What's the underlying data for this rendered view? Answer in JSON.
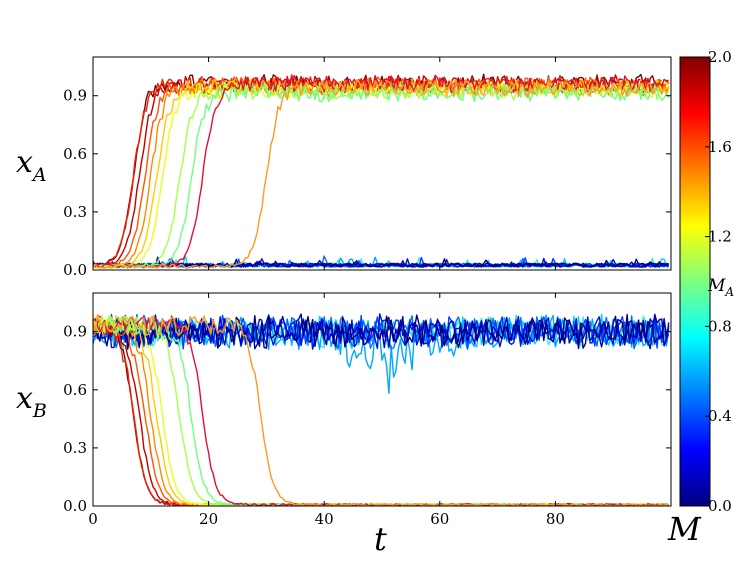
{
  "chart_data": [
    {
      "type": "line",
      "panel": "top",
      "ylabel": "x",
      "ylabel_sub": "A",
      "xlim": [
        0,
        100
      ],
      "ylim": [
        0,
        1.1
      ],
      "yticks": [
        "0.0",
        "0.3",
        "0.6",
        "0.9"
      ],
      "grid": false,
      "series": [
        {
          "M": 2.0,
          "rise_t": 7,
          "end": "high",
          "color": "#7f0000"
        },
        {
          "M": 1.9,
          "rise_t": 8,
          "end": "high",
          "color": "#c00000"
        },
        {
          "M": 1.8,
          "rise_t": 7,
          "end": "high",
          "color": "#ee2200"
        },
        {
          "M": 1.7,
          "rise_t": 9,
          "end": "high",
          "color": "#ff5500"
        },
        {
          "M": 1.6,
          "rise_t": 10,
          "end": "high",
          "color": "#ff8800"
        },
        {
          "M": 1.45,
          "rise_t": 11,
          "end": "high",
          "color": "#ffcc00"
        },
        {
          "M": 1.3,
          "rise_t": 12,
          "end": "high",
          "color": "#e8ff20"
        },
        {
          "M": 1.15,
          "rise_t": 15,
          "end": "high",
          "color": "#a8ff50"
        },
        {
          "M": 1.05,
          "rise_t": 17,
          "end": "high",
          "color": "#70ff80"
        },
        {
          "M": 1.9,
          "rise_t": 19,
          "end": "high",
          "color": "#dd1133"
        },
        {
          "M": 1.5,
          "rise_t": 30,
          "end": "high",
          "color": "#ff9922"
        },
        {
          "M": 0.9,
          "rise_t": null,
          "end": "low",
          "color": "#30f0e0"
        },
        {
          "M": 0.8,
          "rise_t": null,
          "end": "low",
          "color": "#10d0f0"
        },
        {
          "M": 0.7,
          "rise_t": null,
          "end": "low",
          "color": "#00a8ff"
        },
        {
          "M": 0.6,
          "rise_t": null,
          "end": "low",
          "color": "#0070ff"
        },
        {
          "M": 0.5,
          "rise_t": null,
          "end": "low",
          "color": "#0040ff"
        },
        {
          "M": 0.4,
          "rise_t": null,
          "end": "low",
          "color": "#0010e0"
        },
        {
          "M": 0.3,
          "rise_t": null,
          "end": "low",
          "color": "#0000b0"
        },
        {
          "M": 0.15,
          "rise_t": null,
          "end": "low",
          "color": "#000080"
        }
      ]
    },
    {
      "type": "line",
      "panel": "bottom",
      "ylabel": "x",
      "ylabel_sub": "B",
      "xlabel": "t",
      "xlim": [
        0,
        100
      ],
      "ylim": [
        0,
        1.1
      ],
      "xticks": [
        "0",
        "20",
        "40",
        "60",
        "80"
      ],
      "yticks": [
        "0.0",
        "0.3",
        "0.6",
        "0.9"
      ],
      "grid": false,
      "series": [
        {
          "M": 2.0,
          "fall_t": 7,
          "end": "low",
          "color": "#7f0000"
        },
        {
          "M": 1.9,
          "fall_t": 8,
          "end": "low",
          "color": "#c00000"
        },
        {
          "M": 1.8,
          "fall_t": 7,
          "end": "low",
          "color": "#ee2200"
        },
        {
          "M": 1.7,
          "fall_t": 9,
          "end": "low",
          "color": "#ff5500"
        },
        {
          "M": 1.6,
          "fall_t": 10,
          "end": "low",
          "color": "#ff8800"
        },
        {
          "M": 1.45,
          "fall_t": 11,
          "end": "low",
          "color": "#ffcc00"
        },
        {
          "M": 1.3,
          "fall_t": 12,
          "end": "low",
          "color": "#e8ff20"
        },
        {
          "M": 1.15,
          "fall_t": 15,
          "end": "low",
          "color": "#a8ff50"
        },
        {
          "M": 1.05,
          "fall_t": 17,
          "end": "low",
          "color": "#70ff80"
        },
        {
          "M": 1.9,
          "fall_t": 19,
          "end": "low",
          "color": "#dd1133"
        },
        {
          "M": 1.5,
          "fall_t": 29,
          "end": "low",
          "color": "#ff9922"
        },
        {
          "M": 0.9,
          "fall_t": null,
          "end": "high",
          "color": "#30f0e0"
        },
        {
          "M": 0.8,
          "fall_t": null,
          "end": "high",
          "color": "#10d0f0"
        },
        {
          "M": 0.7,
          "fall_t": null,
          "end": "high",
          "color": "#00a8ff"
        },
        {
          "M": 0.6,
          "fall_t": null,
          "end": "high",
          "color": "#0070ff"
        },
        {
          "M": 0.5,
          "fall_t": null,
          "end": "high",
          "color": "#0040ff"
        },
        {
          "M": 0.4,
          "fall_t": null,
          "end": "high",
          "color": "#0010e0"
        },
        {
          "M": 0.3,
          "fall_t": null,
          "end": "high",
          "color": "#0000b0"
        },
        {
          "M": 0.15,
          "fall_t": null,
          "end": "high",
          "color": "#000080"
        }
      ]
    }
  ],
  "colorbar": {
    "label": "M",
    "label_sub": "A",
    "min": 0.0,
    "max": 2.0,
    "ticks": [
      "2.0",
      "1.6",
      "1.2",
      "0.8",
      "0.4",
      "0.0"
    ],
    "colormap": "jet",
    "stops": [
      "#00007f",
      "#0000ff",
      "#007fff",
      "#00ffff",
      "#7fff7f",
      "#ffff00",
      "#ff7f00",
      "#ff0000",
      "#7f0000"
    ]
  },
  "corner_label": "M"
}
